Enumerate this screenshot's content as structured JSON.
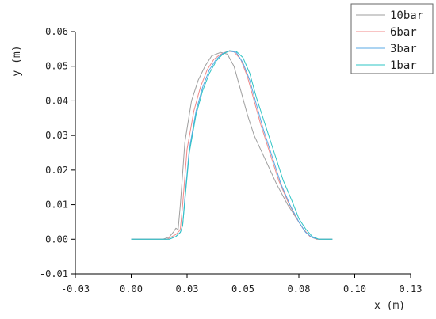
{
  "chart_data": {
    "type": "line",
    "xlabel": "x (m)",
    "ylabel": "y (m)",
    "xlim": [
      -0.025,
      0.125
    ],
    "ylim": [
      -0.01,
      0.06
    ],
    "x_ticks": [
      -0.025,
      0.0,
      0.025,
      0.05,
      0.075,
      0.1,
      0.125
    ],
    "x_tick_labels": [
      "-0.03",
      "0.00",
      "0.03",
      "0.05",
      "0.08",
      "0.10",
      "0.13"
    ],
    "y_ticks": [
      -0.01,
      0.0,
      0.01,
      0.02,
      0.03,
      0.04,
      0.05,
      0.06
    ],
    "y_tick_labels": [
      "-0.01",
      "0.00",
      "0.01",
      "0.02",
      "0.03",
      "0.04",
      "0.05",
      "0.06"
    ],
    "grid": false,
    "legend_position": "top-right",
    "series": [
      {
        "name": "10bar",
        "color": "#9e9e9e",
        "x": [
          0.0,
          0.014,
          0.017,
          0.019,
          0.02,
          0.021,
          0.022,
          0.024,
          0.027,
          0.03,
          0.033,
          0.036,
          0.04,
          0.043,
          0.046,
          0.049,
          0.052,
          0.055,
          0.06,
          0.065,
          0.07,
          0.074,
          0.077,
          0.08,
          0.083,
          0.09
        ],
        "y": [
          0.0,
          0.0,
          0.0006,
          0.0022,
          0.0032,
          0.0028,
          0.01,
          0.028,
          0.04,
          0.046,
          0.05,
          0.053,
          0.054,
          0.0535,
          0.05,
          0.043,
          0.036,
          0.03,
          0.023,
          0.016,
          0.01,
          0.006,
          0.003,
          0.0008,
          0.0,
          0.0
        ]
      },
      {
        "name": "6bar",
        "color": "#f08a8a",
        "x": [
          0.0,
          0.016,
          0.02,
          0.0215,
          0.022,
          0.023,
          0.025,
          0.028,
          0.031,
          0.034,
          0.037,
          0.04,
          0.043,
          0.046,
          0.049,
          0.052,
          0.055,
          0.058,
          0.062,
          0.066,
          0.07,
          0.074,
          0.077,
          0.08,
          0.083,
          0.09
        ],
        "y": [
          0.0,
          0.0,
          0.0014,
          0.0024,
          0.003,
          0.01,
          0.026,
          0.037,
          0.044,
          0.049,
          0.052,
          0.0535,
          0.0543,
          0.0542,
          0.052,
          0.047,
          0.04,
          0.033,
          0.025,
          0.017,
          0.011,
          0.006,
          0.003,
          0.0008,
          0.0,
          0.0
        ]
      },
      {
        "name": "3bar",
        "color": "#5aa8e6",
        "x": [
          0.0,
          0.017,
          0.02,
          0.022,
          0.023,
          0.024,
          0.026,
          0.029,
          0.032,
          0.035,
          0.038,
          0.041,
          0.044,
          0.047,
          0.05,
          0.053,
          0.056,
          0.059,
          0.063,
          0.067,
          0.071,
          0.075,
          0.078,
          0.081,
          0.084,
          0.09
        ],
        "y": [
          0.0,
          0.0,
          0.0008,
          0.002,
          0.004,
          0.012,
          0.026,
          0.037,
          0.044,
          0.049,
          0.052,
          0.0537,
          0.0544,
          0.054,
          0.051,
          0.046,
          0.039,
          0.032,
          0.024,
          0.016,
          0.01,
          0.005,
          0.002,
          0.0005,
          0.0,
          0.0
        ]
      },
      {
        "name": "1bar",
        "color": "#2ec4c4",
        "x": [
          0.0,
          0.017,
          0.02,
          0.022,
          0.023,
          0.024,
          0.026,
          0.029,
          0.032,
          0.035,
          0.038,
          0.041,
          0.044,
          0.047,
          0.05,
          0.053,
          0.056,
          0.06,
          0.064,
          0.068,
          0.072,
          0.075,
          0.078,
          0.081,
          0.084,
          0.09
        ],
        "y": [
          0.0,
          0.0,
          0.0008,
          0.002,
          0.004,
          0.011,
          0.025,
          0.036,
          0.043,
          0.048,
          0.0515,
          0.0535,
          0.0545,
          0.0543,
          0.0525,
          0.048,
          0.041,
          0.033,
          0.025,
          0.017,
          0.011,
          0.006,
          0.003,
          0.0008,
          0.0,
          0.0
        ]
      }
    ]
  }
}
